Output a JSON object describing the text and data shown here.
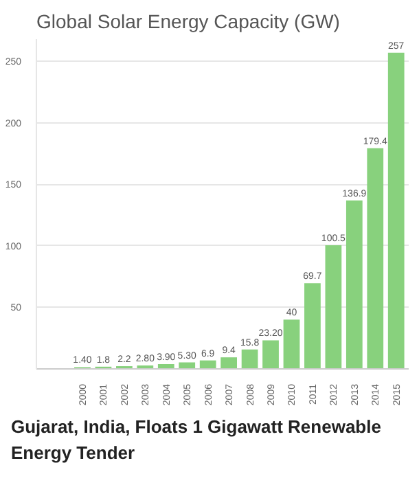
{
  "chart_data": {
    "type": "bar",
    "title": "Global Solar Energy Capacity (GW)",
    "categories": [
      "2000",
      "2001",
      "2002",
      "2003",
      "2004",
      "2005",
      "2006",
      "2007",
      "2008",
      "2009",
      "2010",
      "2011",
      "2012",
      "2013",
      "2014",
      "2015"
    ],
    "values": [
      1.4,
      1.8,
      2.2,
      2.8,
      3.9,
      5.3,
      6.9,
      9.4,
      15.8,
      23.2,
      40,
      69.7,
      100.5,
      136.9,
      179.4,
      257
    ],
    "value_labels": [
      "1.40",
      "1.8",
      "2.2",
      "2.80",
      "3.90",
      "5.30",
      "6.9",
      "9.4",
      "15.8",
      "23.20",
      "40",
      "69.7",
      "100.5",
      "136.9",
      "179.4",
      "257"
    ],
    "color": "#88d17d",
    "ylim": [
      0,
      268
    ],
    "yticks": [
      50,
      100,
      150,
      200,
      250
    ],
    "grid": "y",
    "annotations": [
      "Gujarat, India, Floats 1 Gigawatt Renewable Energy Tender"
    ]
  }
}
